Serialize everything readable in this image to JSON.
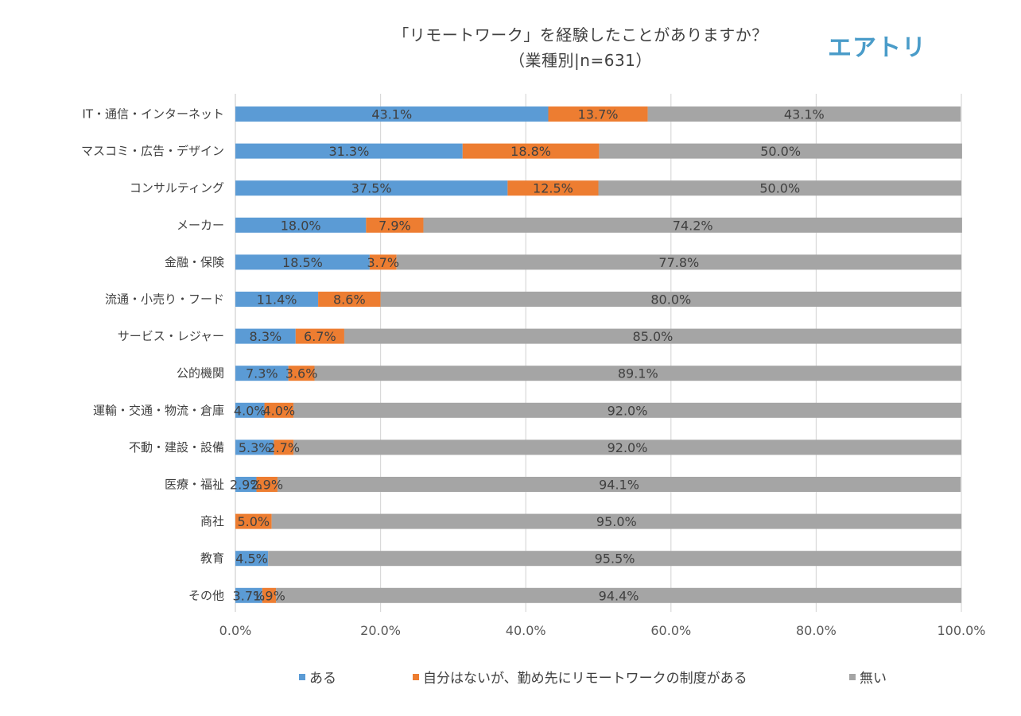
{
  "logo": "エアトリ",
  "chart_data": {
    "type": "bar",
    "orientation": "horizontal",
    "stacked": "percent",
    "title": "「リモートワーク」を経験したことがありますか？",
    "subtitle": "（業種別|n=631）",
    "xlabel": "",
    "ylabel": "",
    "xlim": [
      0,
      100
    ],
    "grid": true,
    "legend_position": "bottom",
    "ticks": [
      "0.0%",
      "20.0%",
      "40.0%",
      "60.0%",
      "80.0%",
      "100.0%"
    ],
    "tick_values": [
      0,
      20,
      40,
      60,
      80,
      100
    ],
    "categories": [
      "IT・通信・インターネット",
      "マスコミ・広告・デザイン",
      "コンサルティング",
      "メーカー",
      "金融・保険",
      "流通・小売り・フード",
      "サービス・レジャー",
      "公的機関",
      "運輸・交通・物流・倉庫",
      "不動・建設・設備",
      "医療・福祉",
      "商社",
      "教育",
      "その他"
    ],
    "series": [
      {
        "name": "ある",
        "color": "#5b9bd5",
        "values": [
          43.1,
          31.3,
          37.5,
          18.0,
          18.5,
          11.4,
          8.3,
          7.3,
          4.0,
          5.3,
          2.9,
          0,
          4.5,
          3.7
        ],
        "labels": [
          "43.1%",
          "31.3%",
          "37.5%",
          "18.0%",
          "18.5%",
          "11.4%",
          "8.3%",
          "7.3%",
          "4.0%",
          "5.3%",
          "2.9%",
          "",
          "4.5%",
          "3.7%"
        ]
      },
      {
        "name": "自分はないが、勤め先にリモートワークの制度がある",
        "color": "#ed7d31",
        "values": [
          13.7,
          18.8,
          12.5,
          7.9,
          3.7,
          8.6,
          6.7,
          3.6,
          4.0,
          2.7,
          2.9,
          5.0,
          0,
          1.9
        ],
        "labels": [
          "13.7%",
          "18.8%",
          "12.5%",
          "7.9%",
          "3.7%",
          "8.6%",
          "6.7%",
          "3.6%",
          "4.0%",
          "2.7%",
          "2.9%",
          "5.0%",
          "",
          "1.9%"
        ]
      },
      {
        "name": "無い",
        "color": "#a5a5a5",
        "values": [
          43.1,
          50.0,
          50.0,
          74.2,
          77.8,
          80.0,
          85.0,
          89.1,
          92.0,
          92.0,
          94.1,
          95.0,
          95.5,
          94.4
        ],
        "labels": [
          "43.1%",
          "50.0%",
          "50.0%",
          "74.2%",
          "77.8%",
          "80.0%",
          "85.0%",
          "89.1%",
          "92.0%",
          "92.0%",
          "94.1%",
          "95.0%",
          "95.5%",
          "94.4%"
        ]
      }
    ]
  }
}
